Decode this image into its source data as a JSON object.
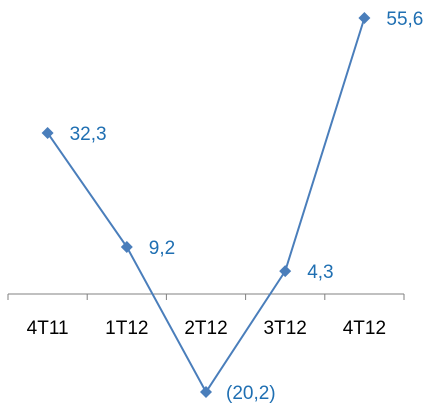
{
  "chart_data": {
    "type": "line",
    "categories": [
      "4T11",
      "1T12",
      "2T12",
      "3T12",
      "4T12"
    ],
    "series": [
      {
        "values": [
          32.3,
          9.2,
          -20.2,
          4.3,
          55.6
        ],
        "labels": [
          "32,3",
          "9,2",
          "(20,2)",
          "4,3",
          "55,6"
        ]
      }
    ],
    "ylim": [
      -20.2,
      55.6
    ],
    "grid": false,
    "legend": "none",
    "colors": {
      "series": "#4a7ebb",
      "data_labels": "#1f6fb2",
      "axis": "#808080"
    }
  }
}
